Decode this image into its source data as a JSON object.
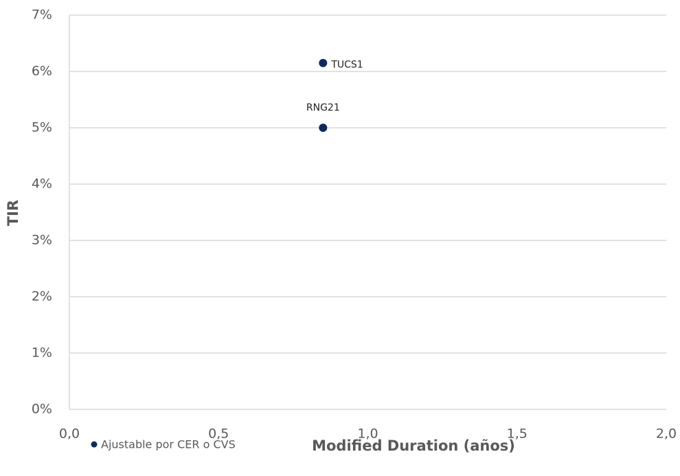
{
  "chart_data": {
    "type": "scatter",
    "x_label": "Modified Duration (años)",
    "y_label": "TIR",
    "series": [
      {
        "name": "Ajustable por CER o CVS",
        "color": "#0b2a5f",
        "x": [
          0.85,
          0.85
        ],
        "values": [
          6.15,
          5.0
        ],
        "labels": [
          "TUCS1",
          "RNG21"
        ]
      }
    ],
    "xlim": [
      0,
      2
    ],
    "xticks": [
      {
        "value": 0,
        "label": "0,0"
      },
      {
        "value": 0.5,
        "label": "0,5"
      },
      {
        "value": 1,
        "label": "1,0"
      },
      {
        "value": 1.5,
        "label": "1,5"
      },
      {
        "value": 2,
        "label": "2,0"
      }
    ],
    "ylim": [
      0,
      7
    ],
    "yticks": [
      {
        "value": 0,
        "label": "0%"
      },
      {
        "value": 1,
        "label": "1%"
      },
      {
        "value": 2,
        "label": "2%"
      },
      {
        "value": 3,
        "label": "3%"
      },
      {
        "value": 4,
        "label": "4%"
      },
      {
        "value": 5,
        "label": "5%"
      },
      {
        "value": 6,
        "label": "6%"
      },
      {
        "value": 7,
        "label": "7%"
      }
    ],
    "grid": true,
    "legend": "bottom-left"
  }
}
